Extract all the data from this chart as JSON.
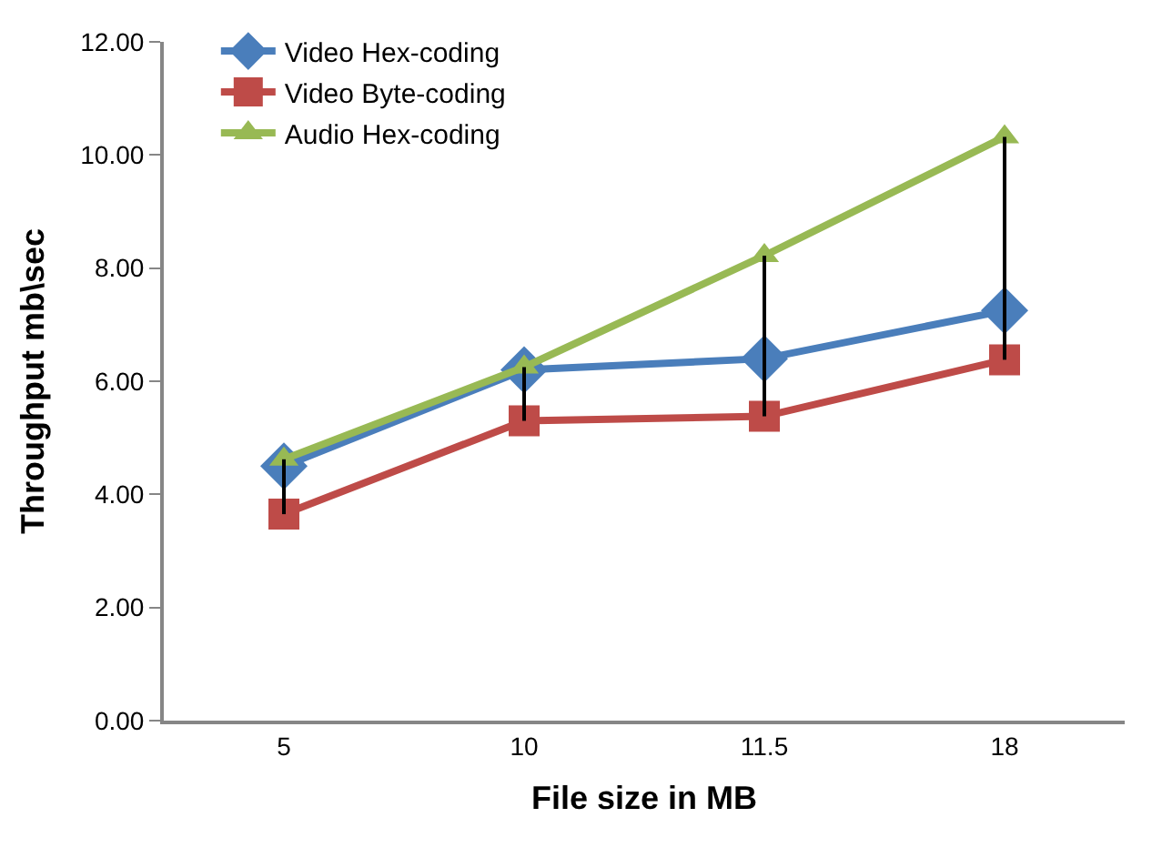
{
  "chart_data": {
    "type": "line",
    "xlabel": "File size in MB",
    "ylabel": "Throughput mb\\sec",
    "categories": [
      "5",
      "10",
      "11.5",
      "18"
    ],
    "series": [
      {
        "name": "Video Hex-coding",
        "color": "#4a7ebb",
        "marker": "diamond",
        "values": [
          4.5,
          6.2,
          6.4,
          7.25
        ]
      },
      {
        "name": "Video Byte-coding",
        "color": "#be4b48",
        "marker": "square",
        "values": [
          3.65,
          5.3,
          5.38,
          6.38
        ]
      },
      {
        "name": "Audio Hex-coding",
        "color": "#98b954",
        "marker": "triangle",
        "values": [
          4.62,
          6.25,
          8.22,
          10.32
        ],
        "errors": [
          [
            3.65,
            4.62
          ],
          [
            5.3,
            6.25
          ],
          [
            5.38,
            8.22
          ],
          [
            6.38,
            10.32
          ]
        ]
      }
    ],
    "ylim": [
      0,
      12
    ],
    "yticks": [
      {
        "value": 0,
        "label": "0.00"
      },
      {
        "value": 2,
        "label": "2.00"
      },
      {
        "value": 4,
        "label": "4.00"
      },
      {
        "value": 6,
        "label": "6.00"
      },
      {
        "value": 8,
        "label": "8.00"
      },
      {
        "value": 10,
        "label": "10.00"
      },
      {
        "value": 12,
        "label": "12.00"
      }
    ],
    "legend": "top",
    "line_style": "solid"
  }
}
